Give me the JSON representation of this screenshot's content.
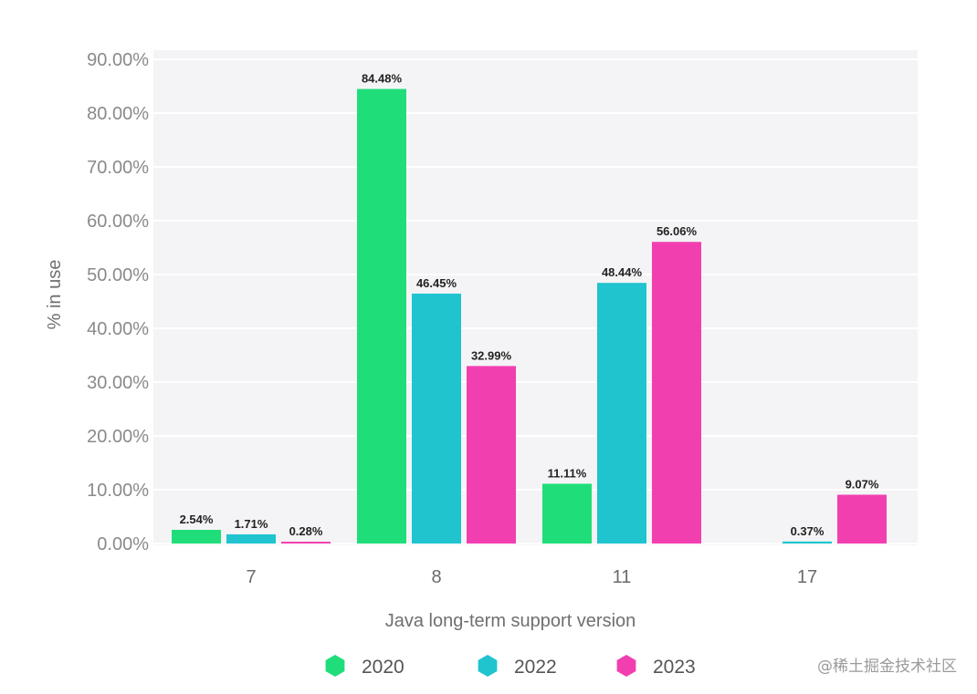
{
  "chart_data": {
    "type": "bar",
    "xlabel": "Java long-term support version",
    "ylabel": "% in use",
    "categories": [
      "7",
      "8",
      "11",
      "17"
    ],
    "ylim": [
      0,
      90
    ],
    "yticks": [
      "0.00%",
      "10.00%",
      "20.00%",
      "30.00%",
      "40.00%",
      "50.00%",
      "60.00%",
      "70.00%",
      "80.00%",
      "90.00%"
    ],
    "grid": true,
    "legend_position": "bottom",
    "series": [
      {
        "name": "2020",
        "color": "#1fde7a",
        "values": [
          2.54,
          84.48,
          11.11,
          null
        ],
        "labels": [
          "2.54%",
          "84.48%",
          "11.11%",
          ""
        ]
      },
      {
        "name": "2022",
        "color": "#1fc4cf",
        "values": [
          1.71,
          46.45,
          48.44,
          0.37
        ],
        "labels": [
          "1.71%",
          "46.45%",
          "48.44%",
          "0.37%"
        ]
      },
      {
        "name": "2023",
        "color": "#f23fb0",
        "values": [
          0.28,
          32.99,
          56.06,
          9.07
        ],
        "labels": [
          "0.28%",
          "32.99%",
          "56.06%",
          "9.07%"
        ]
      }
    ]
  },
  "watermark": "@稀土掘金技术社区"
}
